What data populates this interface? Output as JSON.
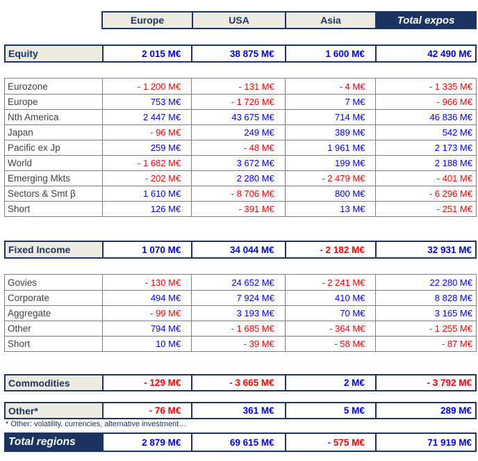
{
  "colors": {
    "navy": "#1B3462",
    "beige": "#EDEADF",
    "blue": "#0000F0",
    "red": "#FF0000",
    "grid": "#7F7F7F",
    "detail_label": "#3F3F3F"
  },
  "header": {
    "columns": [
      "Europe",
      "USA",
      "Asia",
      "Total expos"
    ]
  },
  "sections": [
    {
      "kind": "summary",
      "id": "equity",
      "label": "Equity",
      "values": [
        "2 015 M€",
        "38 875 M€",
        "1 600 M€",
        "42 490 M€"
      ]
    },
    {
      "kind": "detail",
      "id": "equity-breakdown",
      "rows": [
        {
          "label": "Eurozone",
          "values": [
            "- 1 200 M€",
            "- 131 M€",
            "- 4 M€",
            "- 1 335 M€"
          ]
        },
        {
          "label": "Europe",
          "values": [
            "753 M€",
            "- 1 726 M€",
            "7 M€",
            "- 966 M€"
          ]
        },
        {
          "label": "Nth America",
          "values": [
            "2 447 M€",
            "43 675 M€",
            "714 M€",
            "46 836 M€"
          ]
        },
        {
          "label": "Japan",
          "values": [
            "- 96 M€",
            "249 M€",
            "389 M€",
            "542 M€"
          ]
        },
        {
          "label": "Pacific ex Jp",
          "values": [
            "259 M€",
            "- 48 M€",
            "1 961 M€",
            "2 173 M€"
          ]
        },
        {
          "label": "World",
          "values": [
            "- 1 682 M€",
            "3 672 M€",
            "199 M€",
            "2 188 M€"
          ]
        },
        {
          "label": "Emerging Mkts",
          "values": [
            "- 202 M€",
            "2 280 M€",
            "- 2 479 M€",
            "- 401 M€"
          ]
        },
        {
          "label": "Sectors & Smt β",
          "values": [
            "1 610 M€",
            "- 8 706 M€",
            "800 M€",
            "- 6 296 M€"
          ]
        },
        {
          "label": "Short",
          "values": [
            "126 M€",
            "- 391 M€",
            "13 M€",
            "- 251 M€"
          ]
        }
      ]
    },
    {
      "kind": "summary",
      "id": "fixed-income",
      "label": "Fixed Income",
      "values": [
        "1 070 M€",
        "34 044 M€",
        "- 2 182 M€",
        "32 931 M€"
      ]
    },
    {
      "kind": "detail",
      "id": "fixed-income-breakdown",
      "rows": [
        {
          "label": "Govies",
          "values": [
            "- 130 M€",
            "24 652 M€",
            "- 2 241 M€",
            "22 280 M€"
          ]
        },
        {
          "label": "Corporate",
          "values": [
            "494 M€",
            "7 924 M€",
            "410 M€",
            "8 828 M€"
          ]
        },
        {
          "label": "Aggregate",
          "values": [
            "- 99 M€",
            "3 193 M€",
            "70 M€",
            "3 165 M€"
          ]
        },
        {
          "label": "Other",
          "values": [
            "794 M€",
            "- 1 685 M€",
            "- 364 M€",
            "- 1 255 M€"
          ]
        },
        {
          "label": "Short",
          "values": [
            "10 M€",
            "- 39 M€",
            "- 58 M€",
            "- 87 M€"
          ]
        }
      ]
    },
    {
      "kind": "summary",
      "id": "commodities",
      "label": "Commodities",
      "values": [
        "- 129 M€",
        "- 3 665 M€",
        "2 M€",
        "- 3 792 M€"
      ]
    },
    {
      "kind": "summary",
      "id": "other",
      "label": "Other*",
      "values": [
        "- 76 M€",
        "361 M€",
        "5 M€",
        "289 M€"
      ]
    },
    {
      "kind": "total",
      "id": "total-regions",
      "label": "Total regions",
      "values": [
        "2 879 M€",
        "69 615 M€",
        "- 575 M€",
        "71 919 M€"
      ]
    }
  ],
  "footnote": "* Other: volatility, currencies, alternative investment…"
}
